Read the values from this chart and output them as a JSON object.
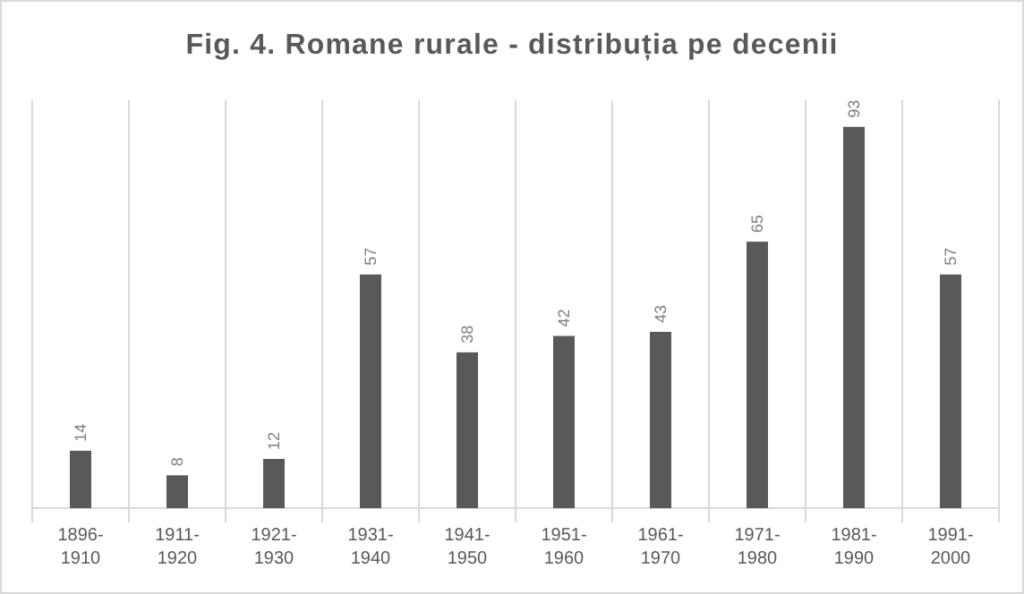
{
  "chart_data": {
    "type": "bar",
    "title": "Fig. 4. Romane rurale - distribuția pe decenii",
    "categories": [
      "1896-1910",
      "1911-1920",
      "1921-1930",
      "1931-1940",
      "1941-1950",
      "1951-1960",
      "1961-1970",
      "1971-1980",
      "1981-1990",
      "1991-2000"
    ],
    "values": [
      14,
      8,
      12,
      57,
      38,
      42,
      43,
      65,
      93,
      57
    ],
    "color": "#595959",
    "data_labels": true,
    "grid": "x"
  }
}
